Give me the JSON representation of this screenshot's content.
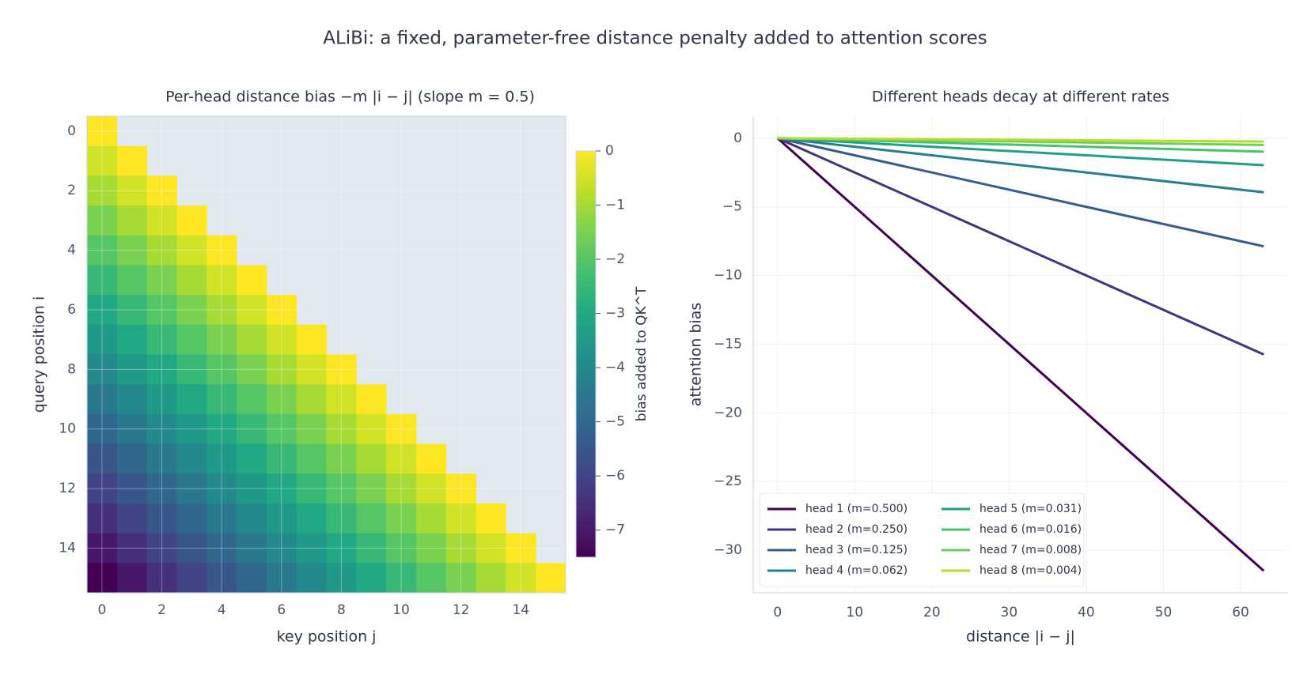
{
  "title": "ALiBi: a fixed, parameter-free distance penalty added to attention scores",
  "chart_data": [
    {
      "type": "heatmap",
      "title": "Per-head distance bias  −m |i − j|  (slope m = 0.5)",
      "xlabel": "key position j",
      "ylabel": "query position i",
      "colorbar_label": "bias added to QK^T",
      "clim": [
        -7.5,
        0
      ],
      "colormap": "viridis",
      "xlim": [
        -0.5,
        15.5
      ],
      "ylim": [
        15.5,
        -0.5
      ],
      "xticks": [
        0,
        2,
        4,
        6,
        8,
        10,
        12,
        14
      ],
      "yticks": [
        0,
        2,
        4,
        6,
        8,
        10,
        12,
        14
      ],
      "cticks": [
        0,
        {
          "value": -1,
          "label": "−1"
        },
        {
          "value": -2,
          "label": "−2"
        },
        {
          "value": -3,
          "label": "−3"
        },
        {
          "value": -4,
          "label": "−4"
        },
        {
          "value": -5,
          "label": "−5"
        },
        {
          "value": -6,
          "label": "−6"
        },
        {
          "value": -7,
          "label": "−7"
        }
      ],
      "grid": true,
      "values": [
        [
          0,
          null,
          null,
          null,
          null,
          null,
          null,
          null,
          null,
          null,
          null,
          null,
          null,
          null,
          null,
          null
        ],
        [
          -0.5,
          0,
          null,
          null,
          null,
          null,
          null,
          null,
          null,
          null,
          null,
          null,
          null,
          null,
          null,
          null
        ],
        [
          -1,
          -0.5,
          0,
          null,
          null,
          null,
          null,
          null,
          null,
          null,
          null,
          null,
          null,
          null,
          null,
          null
        ],
        [
          -1.5,
          -1,
          -0.5,
          0,
          null,
          null,
          null,
          null,
          null,
          null,
          null,
          null,
          null,
          null,
          null,
          null
        ],
        [
          -2,
          -1.5,
          -1,
          -0.5,
          0,
          null,
          null,
          null,
          null,
          null,
          null,
          null,
          null,
          null,
          null,
          null
        ],
        [
          -2.5,
          -2,
          -1.5,
          -1,
          -0.5,
          0,
          null,
          null,
          null,
          null,
          null,
          null,
          null,
          null,
          null,
          null
        ],
        [
          -3,
          -2.5,
          -2,
          -1.5,
          -1,
          -0.5,
          0,
          null,
          null,
          null,
          null,
          null,
          null,
          null,
          null,
          null
        ],
        [
          -3.5,
          -3,
          -2.5,
          -2,
          -1.5,
          -1,
          -0.5,
          0,
          null,
          null,
          null,
          null,
          null,
          null,
          null,
          null
        ],
        [
          -4,
          -3.5,
          -3,
          -2.5,
          -2,
          -1.5,
          -1,
          -0.5,
          0,
          null,
          null,
          null,
          null,
          null,
          null,
          null
        ],
        [
          -4.5,
          -4,
          -3.5,
          -3,
          -2.5,
          -2,
          -1.5,
          -1,
          -0.5,
          0,
          null,
          null,
          null,
          null,
          null,
          null
        ],
        [
          -5,
          -4.5,
          -4,
          -3.5,
          -3,
          -2.5,
          -2,
          -1.5,
          -1,
          -0.5,
          0,
          null,
          null,
          null,
          null,
          null
        ],
        [
          -5.5,
          -5,
          -4.5,
          -4,
          -3.5,
          -3,
          -2.5,
          -2,
          -1.5,
          -1,
          -0.5,
          0,
          null,
          null,
          null,
          null
        ],
        [
          -6,
          -5.5,
          -5,
          -4.5,
          -4,
          -3.5,
          -3,
          -2.5,
          -2,
          -1.5,
          -1,
          -0.5,
          0,
          null,
          null,
          null
        ],
        [
          -6.5,
          -6,
          -5.5,
          -5,
          -4.5,
          -4,
          -3.5,
          -3,
          -2.5,
          -2,
          -1.5,
          -1,
          -0.5,
          0,
          null,
          null
        ],
        [
          -7,
          -6.5,
          -6,
          -5.5,
          -5,
          -4.5,
          -4,
          -3.5,
          -3,
          -2.5,
          -2,
          -1.5,
          -1,
          -0.5,
          0,
          null
        ],
        [
          -7.5,
          -7,
          -6.5,
          -6,
          -5.5,
          -5,
          -4.5,
          -4,
          -3.5,
          -3,
          -2.5,
          -2,
          -1.5,
          -1,
          -0.5,
          0
        ]
      ]
    },
    {
      "type": "line",
      "title": "Different heads decay at different rates",
      "xlabel": "distance |i − j|",
      "ylabel": "attention bias",
      "xlim": [
        -3.15,
        66.15
      ],
      "ylim": [
        -33.1,
        1.6
      ],
      "xticks": [
        0,
        10,
        20,
        30,
        40,
        50,
        60
      ],
      "yticks": [
        0,
        {
          "value": -5,
          "label": "−5"
        },
        {
          "value": -10,
          "label": "−10"
        },
        {
          "value": -15,
          "label": "−15"
        },
        {
          "value": -20,
          "label": "−20"
        },
        {
          "value": -25,
          "label": "−25"
        },
        {
          "value": -30,
          "label": "−30"
        }
      ],
      "grid": true,
      "legend": "lower left",
      "x": [
        0,
        63
      ],
      "series": [
        {
          "name": "head 1  (m=0.500)",
          "color": "#440154",
          "values": [
            0,
            -31.5
          ]
        },
        {
          "name": "head 2  (m=0.250)",
          "color": "#46327e",
          "values": [
            0,
            -15.75
          ]
        },
        {
          "name": "head 3  (m=0.125)",
          "color": "#365c8d",
          "values": [
            0,
            -7.875
          ]
        },
        {
          "name": "head 4  (m=0.062)",
          "color": "#277f8e",
          "values": [
            0,
            -3.9375
          ]
        },
        {
          "name": "head 5  (m=0.031)",
          "color": "#1fa187",
          "values": [
            0,
            -1.96875
          ]
        },
        {
          "name": "head 6  (m=0.016)",
          "color": "#4ac16d",
          "values": [
            0,
            -0.984375
          ]
        },
        {
          "name": "head 7  (m=0.008)",
          "color": "#6ece58",
          "values": [
            0,
            -0.4921875
          ]
        },
        {
          "name": "head 8  (m=0.004)",
          "color": "#b5de2b",
          "values": [
            0,
            -0.24609375
          ]
        }
      ]
    }
  ]
}
